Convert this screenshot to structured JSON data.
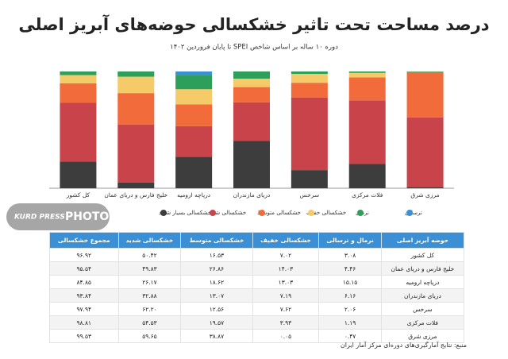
{
  "chart_data": {
    "type": "stacked_bar",
    "title": "درصد مساحت تحت تاثیر خشکسالی حوضه‌های آبریز اصلی",
    "subtitle": "دوره ۱۰ ساله بر اساس شاخص SPEI  تا پایان فروردین ۱۴۰۲",
    "categories": [
      "کل کشور",
      "خلیج فارس و دریای عمان",
      "دریاچه ارومیه",
      "دریای مازندران",
      "سرخس",
      "فلات مرکزی",
      "مرزی شرق"
    ],
    "series": [
      {
        "name": "خشکسالی بسیار شدید",
        "color": "#3d3d3d",
        "values": [
          22.95,
          4.82,
          27.03,
          40.7,
          15.56,
          20.78,
          0.96
        ]
      },
      {
        "name": "خشکسالی شدید",
        "color": "#c9444a",
        "values": [
          50.42,
          49.83,
          26.17,
          32.88,
          62.2,
          54.53,
          59.65
        ]
      },
      {
        "name": "خشکسالی متوسط",
        "color": "#f26b3a",
        "values": [
          16.53,
          26.86,
          18.62,
          13.07,
          12.56,
          19.57,
          38.87
        ]
      },
      {
        "name": "خشکسالی خفیف",
        "color": "#f5cb6a",
        "values": [
          7.02,
          14.03,
          13.03,
          7.19,
          7.62,
          3.93,
          0.05
        ]
      },
      {
        "name": "نرمال",
        "color": "#2e9e5b",
        "values": [
          3.08,
          4.46,
          12.15,
          6.16,
          2.06,
          1.19,
          0.47
        ]
      },
      {
        "name": "ترسالی",
        "color": "#3b8fd4",
        "values": [
          0,
          0,
          3,
          0,
          0,
          0,
          0
        ]
      }
    ],
    "ylim": [
      0,
      100
    ]
  },
  "watermark": {
    "brand": "KURD PRESS",
    "label": "PHOTO"
  },
  "table": {
    "header": [
      "حوضه آبریز اصلی",
      "نرمال و ترسالی",
      "خشکسالی خفیف",
      "خشکسالی متوسط",
      "خشکسالی شدید",
      "مجموع خشکسالی"
    ],
    "rows": [
      [
        "کل کشور",
        "۳.۰۸",
        "۷.۰۲",
        "۱۶.۵۳",
        "۵۰.۴۲",
        "۹۶.۹۲"
      ],
      [
        "خلیج فارس و دریای عمان",
        "۴.۴۶",
        "۱۴.۰۳",
        "۲۶.۸۶",
        "۴۹.۸۳",
        "۹۵.۵۴"
      ],
      [
        "دریاچه ارومیه",
        "۱۵.۱۵",
        "۱۳.۰۳",
        "۱۸.۶۲",
        "۲۶.۱۷",
        "۸۴.۸۵"
      ],
      [
        "دریای مازندران",
        "۶.۱۶",
        "۷.۱۹",
        "۱۳.۰۷",
        "۳۲.۸۸",
        "۹۳.۸۴"
      ],
      [
        "سرخس",
        "۲.۰۶",
        "۷.۶۲",
        "۱۲.۵۶",
        "۶۲.۲۰",
        "۹۷.۹۴"
      ],
      [
        "فلات مرکزی",
        "۱.۱۹",
        "۳.۹۳",
        "۱۹.۵۷",
        "۵۴.۵۳",
        "۹۸.۸۱"
      ],
      [
        "مرزی شرق",
        "۰.۴۷",
        "۰.۰۵",
        "۳۸.۸۷",
        "۵۹.۶۵",
        "۹۹.۵۳"
      ]
    ]
  },
  "source": "منبع: نتایج آمارگیری‌های دوره‌ای مرکز آمار ایران"
}
